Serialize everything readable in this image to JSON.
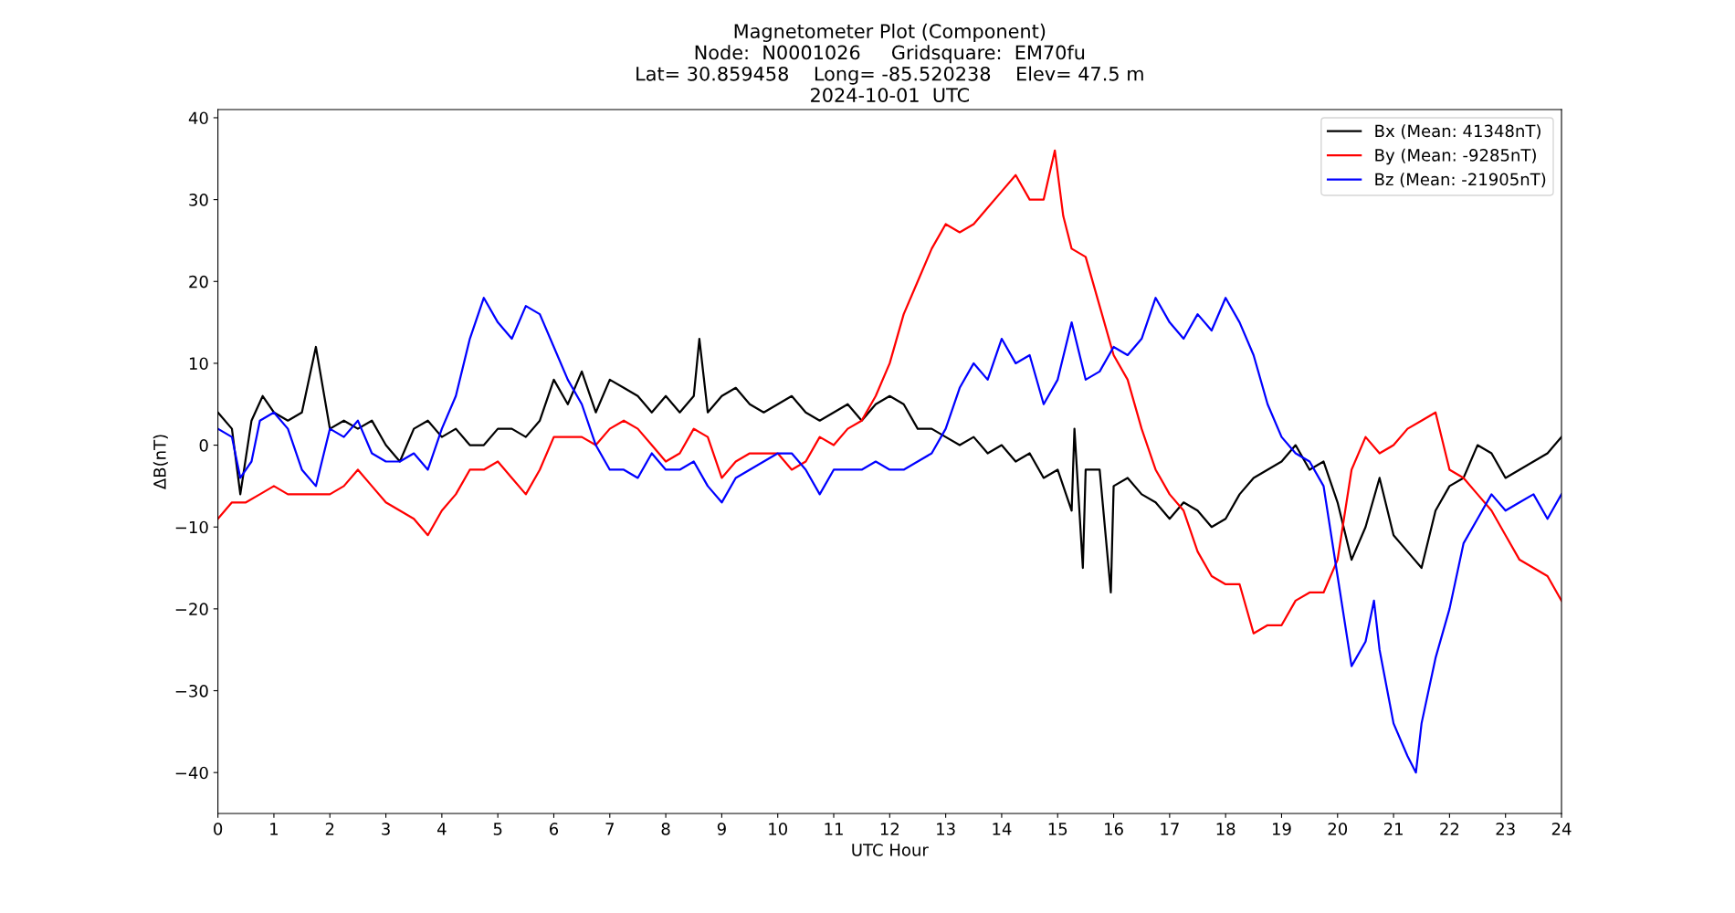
{
  "chart_data": {
    "type": "line",
    "title": "Magnetometer Plot (Component)\nNode:  N0001026     Gridsquare:  EM70fu\nLat= 30.859458    Long= -85.520238    Elev= 47.5 m\n2024-10-01  UTC",
    "xlabel": "UTC Hour",
    "ylabel": "ΔB(nT)",
    "series": [
      {
        "name": "Bx (Mean: 41348nT)",
        "color": "#000000",
        "x": [
          0,
          0.25,
          0.4,
          0.6,
          0.8,
          1,
          1.25,
          1.5,
          1.75,
          2,
          2.25,
          2.5,
          2.75,
          3,
          3.25,
          3.5,
          3.75,
          4,
          4.25,
          4.5,
          4.75,
          5,
          5.25,
          5.5,
          5.75,
          6,
          6.25,
          6.5,
          6.75,
          7,
          7.25,
          7.5,
          7.75,
          8,
          8.25,
          8.5,
          8.6,
          8.75,
          9,
          9.25,
          9.5,
          9.75,
          10,
          10.25,
          10.5,
          10.75,
          11,
          11.25,
          11.5,
          11.75,
          12,
          12.25,
          12.5,
          12.75,
          13,
          13.25,
          13.5,
          13.75,
          14,
          14.25,
          14.5,
          14.75,
          15,
          15.25,
          15.3,
          15.45,
          15.5,
          15.75,
          15.95,
          16,
          16.25,
          16.5,
          16.75,
          17,
          17.25,
          17.5,
          17.75,
          18,
          18.25,
          18.5,
          18.75,
          19,
          19.25,
          19.5,
          19.75,
          20,
          20.25,
          20.5,
          20.75,
          21,
          21.25,
          21.5,
          21.75,
          22,
          22.25,
          22.5,
          22.75,
          23,
          23.25,
          23.5,
          23.75,
          24
        ],
        "values": [
          4,
          2,
          -6,
          3,
          6,
          4,
          3,
          4,
          12,
          2,
          3,
          2,
          3,
          0,
          -2,
          2,
          3,
          1,
          2,
          0,
          0,
          2,
          2,
          1,
          3,
          8,
          5,
          9,
          4,
          8,
          7,
          6,
          4,
          6,
          4,
          6,
          13,
          4,
          6,
          7,
          5,
          4,
          5,
          6,
          4,
          3,
          4,
          5,
          3,
          5,
          6,
          5,
          2,
          2,
          1,
          0,
          1,
          -1,
          0,
          -2,
          -1,
          -4,
          -3,
          -8,
          2,
          -15,
          -3,
          -3,
          -18,
          -5,
          -4,
          -6,
          -7,
          -9,
          -7,
          -8,
          -10,
          -9,
          -6,
          -4,
          -3,
          -2,
          0,
          -3,
          -2,
          -7,
          -14,
          -10,
          -4,
          -11,
          -13,
          -15,
          -8,
          -5,
          -4,
          0,
          -1,
          -4,
          -3,
          -2,
          -1,
          1
        ]
      },
      {
        "name": "By (Mean: -9285nT)",
        "color": "#ff0000",
        "x": [
          0,
          0.25,
          0.5,
          0.75,
          1,
          1.25,
          1.5,
          1.75,
          2,
          2.25,
          2.5,
          2.75,
          3,
          3.25,
          3.5,
          3.75,
          4,
          4.25,
          4.5,
          4.75,
          5,
          5.25,
          5.5,
          5.75,
          6,
          6.25,
          6.5,
          6.75,
          7,
          7.25,
          7.5,
          7.75,
          8,
          8.25,
          8.5,
          8.75,
          9,
          9.25,
          9.5,
          9.75,
          10,
          10.25,
          10.5,
          10.75,
          11,
          11.25,
          11.5,
          11.75,
          12,
          12.25,
          12.5,
          12.75,
          13,
          13.25,
          13.5,
          13.75,
          14,
          14.25,
          14.5,
          14.75,
          14.95,
          15.1,
          15.25,
          15.5,
          15.75,
          16,
          16.25,
          16.5,
          16.75,
          17,
          17.25,
          17.5,
          17.75,
          18,
          18.25,
          18.5,
          18.75,
          19,
          19.25,
          19.5,
          19.75,
          20,
          20.25,
          20.5,
          20.75,
          21,
          21.25,
          21.5,
          21.75,
          22,
          22.25,
          22.5,
          22.75,
          23,
          23.25,
          23.5,
          23.75,
          24
        ],
        "values": [
          -9,
          -7,
          -7,
          -6,
          -5,
          -6,
          -6,
          -6,
          -6,
          -5,
          -3,
          -5,
          -7,
          -8,
          -9,
          -11,
          -8,
          -6,
          -3,
          -3,
          -2,
          -4,
          -6,
          -3,
          1,
          1,
          1,
          0,
          2,
          3,
          2,
          0,
          -2,
          -1,
          2,
          1,
          -4,
          -2,
          -1,
          -1,
          -1,
          -3,
          -2,
          1,
          0,
          2,
          3,
          6,
          10,
          16,
          20,
          24,
          27,
          26,
          27,
          29,
          31,
          33,
          30,
          30,
          36,
          28,
          24,
          23,
          17,
          11,
          8,
          2,
          -3,
          -6,
          -8,
          -13,
          -16,
          -17,
          -17,
          -23,
          -22,
          -22,
          -19,
          -18,
          -18,
          -14,
          -3,
          1,
          -1,
          0,
          2,
          3,
          4,
          -3,
          -4,
          -6,
          -8,
          -11,
          -14,
          -15,
          -16,
          -19
        ]
      },
      {
        "name": "Bz (Mean: -21905nT)",
        "color": "#0000ff",
        "x": [
          0,
          0.25,
          0.4,
          0.6,
          0.75,
          1,
          1.25,
          1.5,
          1.75,
          2,
          2.25,
          2.5,
          2.75,
          3,
          3.25,
          3.5,
          3.75,
          4,
          4.25,
          4.5,
          4.75,
          5,
          5.25,
          5.5,
          5.75,
          6,
          6.25,
          6.5,
          6.75,
          7,
          7.25,
          7.5,
          7.75,
          8,
          8.25,
          8.5,
          8.75,
          9,
          9.25,
          9.5,
          9.75,
          10,
          10.25,
          10.5,
          10.75,
          11,
          11.25,
          11.5,
          11.75,
          12,
          12.25,
          12.5,
          12.75,
          13,
          13.25,
          13.5,
          13.75,
          14,
          14.25,
          14.5,
          14.75,
          15,
          15.25,
          15.5,
          15.75,
          16,
          16.25,
          16.5,
          16.75,
          17,
          17.25,
          17.5,
          17.75,
          18,
          18.25,
          18.5,
          18.75,
          19,
          19.25,
          19.5,
          19.75,
          20,
          20.25,
          20.5,
          20.65,
          20.75,
          21,
          21.25,
          21.4,
          21.5,
          21.75,
          22,
          22.25,
          22.5,
          22.75,
          23,
          23.25,
          23.5,
          23.75,
          24
        ],
        "values": [
          2,
          1,
          -4,
          -2,
          3,
          4,
          2,
          -3,
          -5,
          2,
          1,
          3,
          -1,
          -2,
          -2,
          -1,
          -3,
          2,
          6,
          13,
          18,
          15,
          13,
          17,
          16,
          12,
          8,
          5,
          0,
          -3,
          -3,
          -4,
          -1,
          -3,
          -3,
          -2,
          -5,
          -7,
          -4,
          -3,
          -2,
          -1,
          -1,
          -3,
          -6,
          -3,
          -3,
          -3,
          -2,
          -3,
          -3,
          -2,
          -1,
          2,
          7,
          10,
          8,
          13,
          10,
          11,
          5,
          8,
          15,
          8,
          9,
          12,
          11,
          13,
          18,
          15,
          13,
          16,
          14,
          18,
          15,
          11,
          5,
          1,
          -1,
          -2,
          -5,
          -16,
          -27,
          -24,
          -19,
          -25,
          -34,
          -38,
          -40,
          -34,
          -26,
          -20,
          -12,
          -9,
          -6,
          -8,
          -7,
          -6,
          -9,
          -6
        ]
      }
    ],
    "xlim": [
      0,
      24
    ],
    "ylim": [
      -45,
      41
    ],
    "xticks": [
      0,
      1,
      2,
      3,
      4,
      5,
      6,
      7,
      8,
      9,
      10,
      11,
      12,
      13,
      14,
      15,
      16,
      17,
      18,
      19,
      20,
      21,
      22,
      23,
      24
    ],
    "yticks": [
      {
        "value": -40,
        "label": "−40"
      },
      {
        "value": -30,
        "label": "−30"
      },
      {
        "value": -20,
        "label": "−20"
      },
      {
        "value": -10,
        "label": "−10"
      },
      0,
      10,
      20,
      30,
      40
    ],
    "grid": false,
    "legend": "top right",
    "marker": "none",
    "line_style": "solid"
  }
}
